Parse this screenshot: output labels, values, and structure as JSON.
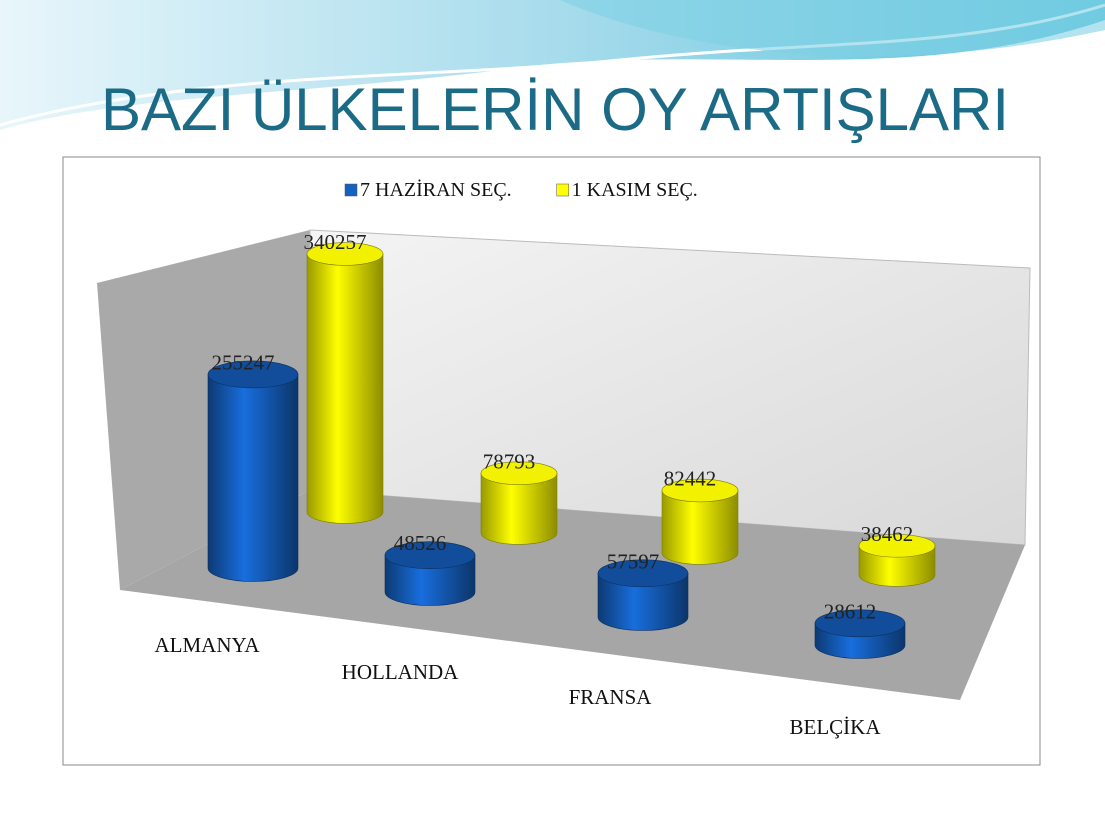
{
  "chart_data": {
    "type": "bar3d",
    "title": "BAZI ÜLKELERİN OY ARTIŞLARI",
    "categories": [
      "ALMANYA",
      "HOLLANDA",
      "FRANSA",
      "BELÇİKA"
    ],
    "series": [
      {
        "name": "7 HAZİRAN SEÇ.",
        "color": "#1560c0",
        "values": [
          255247,
          48526,
          57597,
          28612
        ]
      },
      {
        "name": "1 KASIM SEÇ.",
        "color": "#ffff00",
        "values": [
          340257,
          78793,
          82442,
          38462
        ]
      }
    ]
  }
}
